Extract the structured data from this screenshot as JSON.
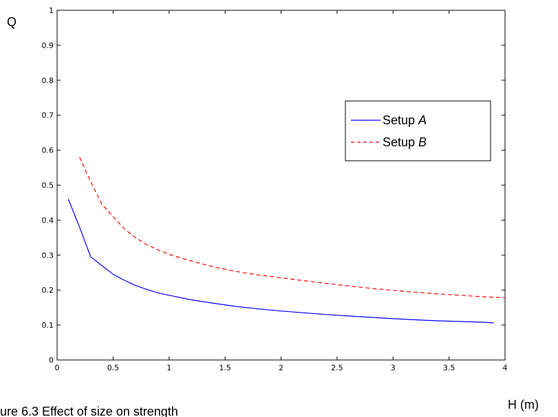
{
  "chart_data": {
    "type": "line",
    "ylabel": "Q",
    "xlabel": "H (m)",
    "caption": "ure  6.3  Effect of size on strength",
    "xlim": [
      0,
      4
    ],
    "ylim": [
      0,
      1
    ],
    "xticks": [
      "0",
      "0.5",
      "1",
      "1.5",
      "2",
      "2.5",
      "3",
      "3.5",
      "4"
    ],
    "yticks": [
      "0",
      "0.1",
      "0.2",
      "0.3",
      "0.4",
      "0.5",
      "0.6",
      "0.7",
      "0.8",
      "0.9",
      "1"
    ],
    "grid": false,
    "legend_position": "upper-right",
    "series": [
      {
        "name_prefix": "Setup ",
        "name_italic": "A",
        "color": "#0000ff",
        "dash": "solid",
        "x": [
          0.1,
          0.2,
          0.3,
          0.4,
          0.5,
          0.6,
          0.7,
          0.8,
          0.9,
          1.0,
          1.2,
          1.4,
          1.6,
          1.8,
          2.0,
          2.2,
          2.4,
          2.6,
          2.8,
          3.0,
          3.2,
          3.4,
          3.6,
          3.8,
          3.9
        ],
        "y": [
          0.46,
          0.38,
          0.295,
          0.27,
          0.245,
          0.228,
          0.213,
          0.202,
          0.192,
          0.185,
          0.172,
          0.162,
          0.153,
          0.146,
          0.14,
          0.135,
          0.13,
          0.126,
          0.122,
          0.118,
          0.115,
          0.112,
          0.11,
          0.108,
          0.106
        ]
      },
      {
        "name_prefix": "Setup ",
        "name_italic": "B",
        "color": "#ff0000",
        "dash": "dashed",
        "x": [
          0.2,
          0.3,
          0.4,
          0.5,
          0.6,
          0.7,
          0.8,
          0.9,
          1.0,
          1.2,
          1.4,
          1.6,
          1.8,
          2.0,
          2.2,
          2.4,
          2.6,
          2.8,
          3.0,
          3.2,
          3.4,
          3.6,
          3.8,
          4.0
        ],
        "y": [
          0.58,
          0.51,
          0.445,
          0.41,
          0.375,
          0.35,
          0.33,
          0.315,
          0.302,
          0.283,
          0.266,
          0.253,
          0.243,
          0.235,
          0.227,
          0.219,
          0.212,
          0.205,
          0.199,
          0.194,
          0.189,
          0.185,
          0.181,
          0.178
        ]
      }
    ]
  }
}
